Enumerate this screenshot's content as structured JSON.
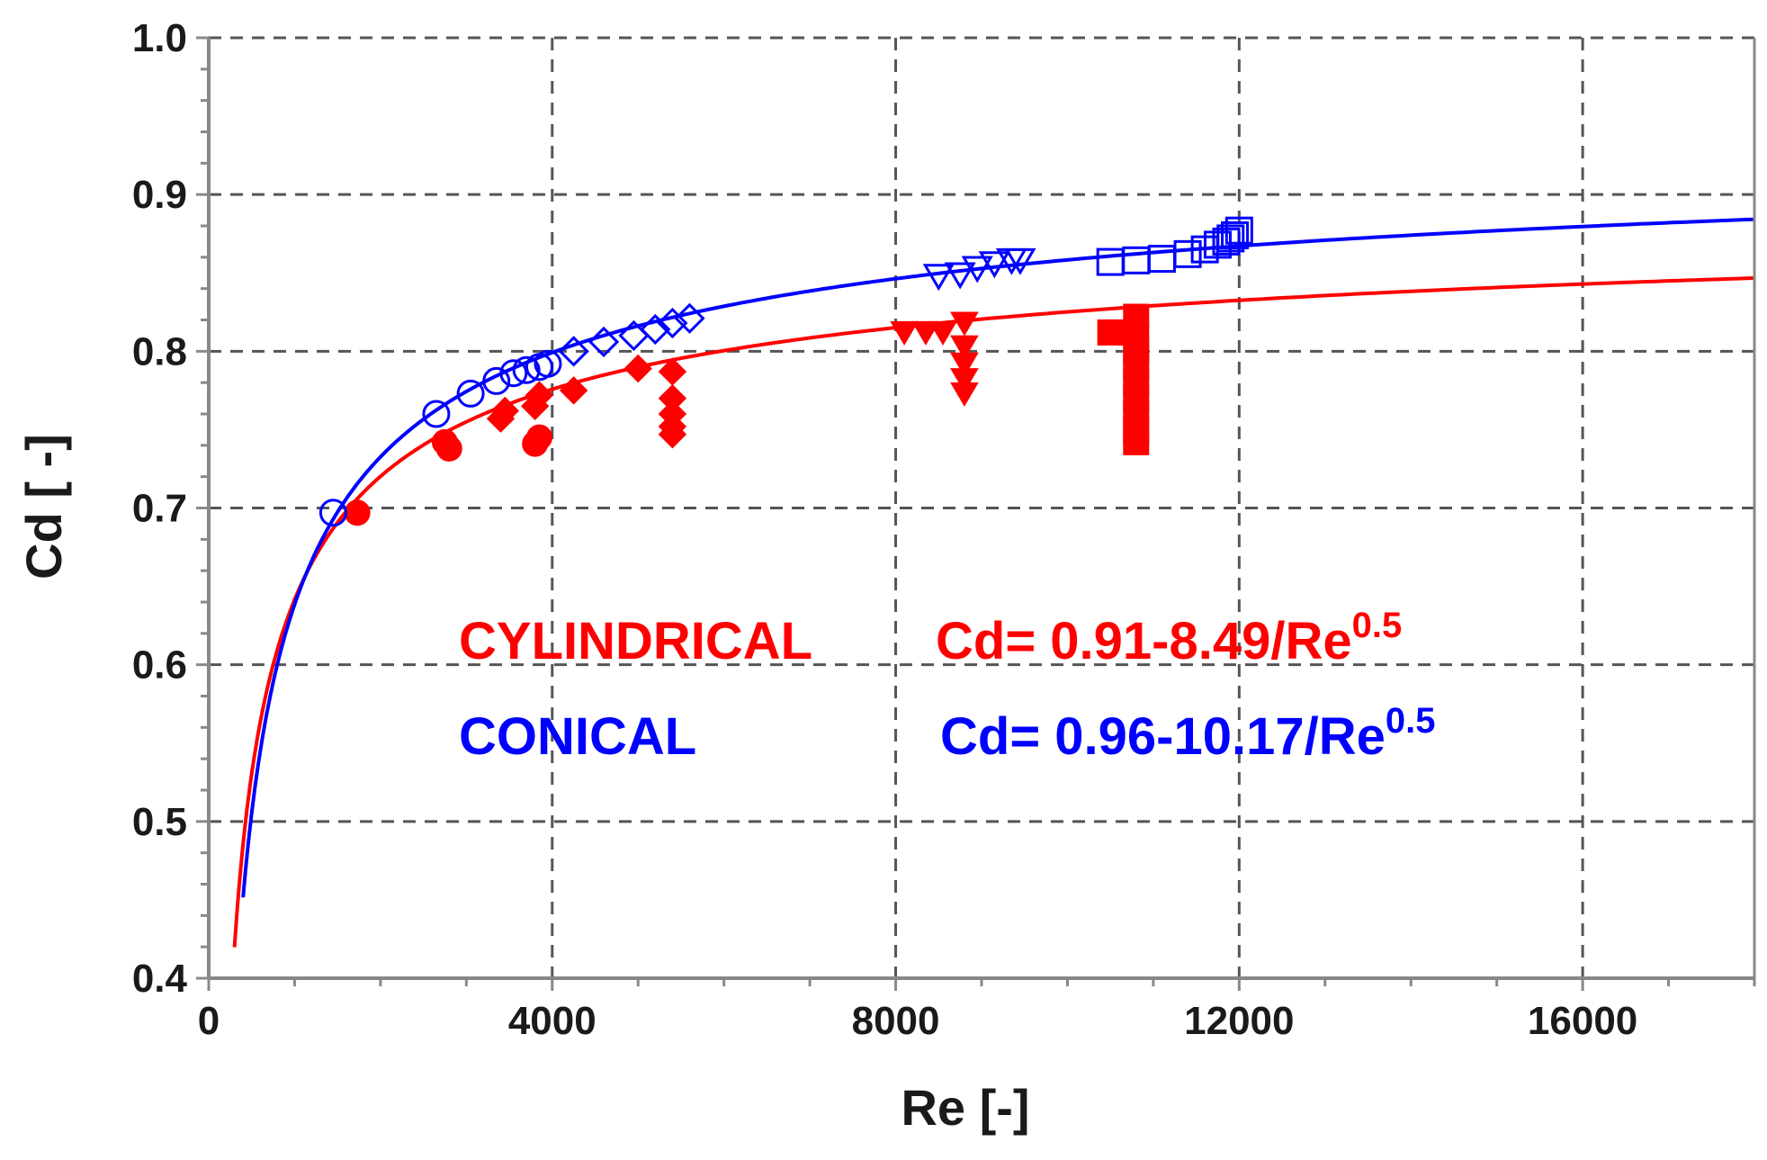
{
  "chart_data": {
    "type": "scatter",
    "xlabel": "Re [-]",
    "ylabel": "Cd [ -]",
    "xlim": [
      0,
      18000
    ],
    "ylim": [
      0.4,
      1.0
    ],
    "x_ticks": [
      0,
      4000,
      8000,
      12000,
      16000
    ],
    "x_tick_labels": [
      "0",
      "4000",
      "8000",
      "12000",
      "16000"
    ],
    "y_ticks": [
      0.4,
      0.5,
      0.6,
      0.7,
      0.8,
      0.9,
      1.0
    ],
    "y_tick_labels": [
      "0.4",
      "0.5",
      "0.6",
      "0.7",
      "0.8",
      "0.9",
      "1.0"
    ],
    "grid": true,
    "colors": {
      "cylindrical": "#ff0000",
      "conical": "#0000ff",
      "grid": "#555555",
      "axis": "#888888"
    },
    "annotations": [
      {
        "label": "CYLINDRICAL",
        "formula": "Cd= 0.91-8.49/Re",
        "exponent": "0.5",
        "color": "#ff0000"
      },
      {
        "label": "CONICAL",
        "formula": "Cd= 0.96-10.17/Re",
        "exponent": "0.5",
        "color": "#0000ff"
      }
    ],
    "fits": [
      {
        "color": "#ff0000",
        "a": 0.91,
        "b": 8.49,
        "x_range": [
          300,
          18000
        ]
      },
      {
        "color": "#0000ff",
        "a": 0.96,
        "b": 10.17,
        "x_range": [
          400,
          18000
        ]
      }
    ],
    "series": [
      {
        "marker": "circle-filled",
        "color": "#ff0000",
        "points": [
          [
            1730,
            0.697
          ],
          [
            2750,
            0.742
          ],
          [
            2800,
            0.738
          ],
          [
            3800,
            0.741
          ],
          [
            3850,
            0.745
          ]
        ]
      },
      {
        "marker": "diamond-filled",
        "color": "#ff0000",
        "points": [
          [
            3400,
            0.757
          ],
          [
            3450,
            0.762
          ],
          [
            3800,
            0.765
          ],
          [
            3850,
            0.772
          ],
          [
            4250,
            0.775
          ],
          [
            5000,
            0.789
          ],
          [
            5400,
            0.787
          ],
          [
            5400,
            0.77
          ],
          [
            5400,
            0.76
          ],
          [
            5400,
            0.752
          ],
          [
            5400,
            0.747
          ]
        ]
      },
      {
        "marker": "triangle-down-filled",
        "color": "#ff0000",
        "points": [
          [
            8100,
            0.812
          ],
          [
            8350,
            0.812
          ],
          [
            8550,
            0.812
          ],
          [
            8800,
            0.818
          ],
          [
            8800,
            0.803
          ],
          [
            8800,
            0.792
          ],
          [
            8800,
            0.782
          ],
          [
            8800,
            0.773
          ]
        ]
      },
      {
        "marker": "square-filled",
        "color": "#ff0000",
        "points": [
          [
            10800,
            0.822
          ],
          [
            10800,
            0.81
          ],
          [
            10800,
            0.8
          ],
          [
            10800,
            0.79
          ],
          [
            10800,
            0.78
          ],
          [
            10800,
            0.77
          ],
          [
            10800,
            0.76
          ],
          [
            10800,
            0.75
          ],
          [
            10800,
            0.742
          ],
          [
            10500,
            0.812
          ]
        ]
      },
      {
        "marker": "circle-open",
        "color": "#0000ff",
        "points": [
          [
            1450,
            0.697
          ],
          [
            2650,
            0.76
          ],
          [
            3050,
            0.773
          ],
          [
            3350,
            0.781
          ],
          [
            3550,
            0.786
          ],
          [
            3700,
            0.788
          ],
          [
            3850,
            0.79
          ],
          [
            3950,
            0.792
          ]
        ]
      },
      {
        "marker": "diamond-open",
        "color": "#0000ff",
        "points": [
          [
            4250,
            0.8
          ],
          [
            4600,
            0.806
          ],
          [
            4950,
            0.81
          ],
          [
            5200,
            0.814
          ],
          [
            5400,
            0.818
          ],
          [
            5600,
            0.821
          ]
        ]
      },
      {
        "marker": "triangle-down-open",
        "color": "#0000ff",
        "points": [
          [
            8500,
            0.848
          ],
          [
            8750,
            0.849
          ],
          [
            8950,
            0.853
          ],
          [
            9150,
            0.856
          ],
          [
            9350,
            0.858
          ],
          [
            9450,
            0.858
          ]
        ]
      },
      {
        "marker": "square-open",
        "color": "#0000ff",
        "points": [
          [
            10500,
            0.857
          ],
          [
            10800,
            0.858
          ],
          [
            11100,
            0.859
          ],
          [
            11400,
            0.862
          ],
          [
            11600,
            0.865
          ],
          [
            11750,
            0.868
          ],
          [
            11850,
            0.87
          ],
          [
            11950,
            0.874
          ],
          [
            12000,
            0.877
          ],
          [
            11900,
            0.872
          ]
        ]
      }
    ]
  }
}
